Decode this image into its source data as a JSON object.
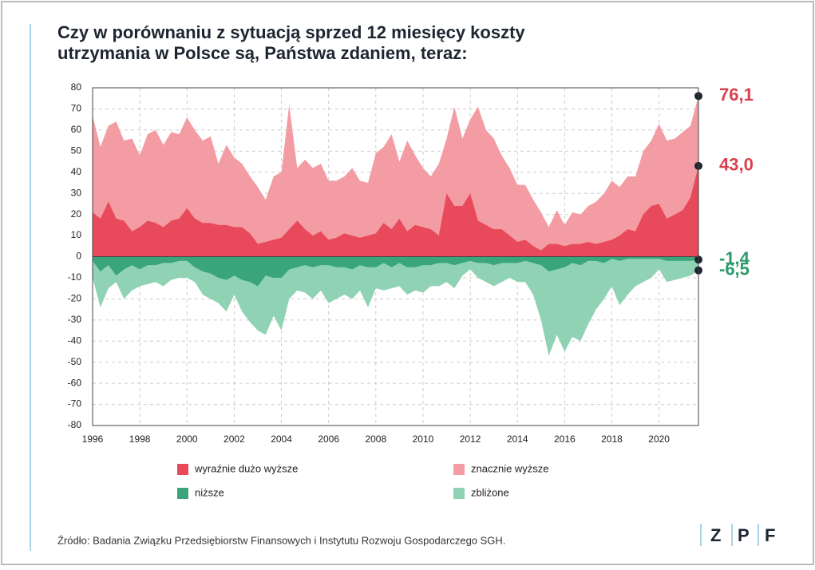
{
  "chart_data": {
    "type": "area",
    "title": [
      "Czy w porównaniu z sytuacją sprzed 12 miesięcy koszty",
      "utrzymania w Polsce są, Państwa zdaniem, teraz:"
    ],
    "source": "Źródło: Badania Związku Przedsiębiorstw Finansowych i Instytutu Rozwoju Gospodarczego SGH.",
    "logo": [
      "Z",
      "P",
      "F"
    ],
    "x": [
      1996,
      1996.33,
      1996.67,
      1997,
      1997.33,
      1997.67,
      1998,
      1998.33,
      1998.67,
      1999,
      1999.33,
      1999.67,
      2000,
      2000.33,
      2000.67,
      2001,
      2001.33,
      2001.67,
      2002,
      2002.33,
      2002.67,
      2003,
      2003.33,
      2003.67,
      2004,
      2004.33,
      2004.67,
      2005,
      2005.33,
      2005.67,
      2006,
      2006.33,
      2006.67,
      2007,
      2007.33,
      2007.67,
      2008,
      2008.33,
      2008.67,
      2009,
      2009.33,
      2009.67,
      2010,
      2010.33,
      2010.67,
      2011,
      2011.33,
      2011.67,
      2012,
      2012.33,
      2012.67,
      2013,
      2013.33,
      2013.67,
      2014,
      2014.33,
      2014.67,
      2015,
      2015.33,
      2015.67,
      2016,
      2016.33,
      2016.67,
      2017,
      2017.33,
      2017.67,
      2018,
      2018.33,
      2018.67,
      2019,
      2019.33,
      2019.67,
      2020,
      2020.33,
      2020.67,
      2021,
      2021.33,
      2021.67
    ],
    "series": [
      {
        "name": "znacznie wyższe",
        "color": "#f39ca3",
        "label_color": "#d9414f",
        "last_label": "76,1",
        "values": [
          67,
          52,
          62,
          64,
          55,
          56,
          48,
          58,
          60,
          53,
          59,
          58,
          66,
          60,
          55,
          57,
          44,
          53,
          47,
          44,
          38,
          33,
          27,
          38,
          40,
          72,
          42,
          46,
          42,
          44,
          36,
          36,
          38,
          42,
          36,
          35,
          49,
          52,
          58,
          45,
          55,
          48,
          42,
          38,
          44,
          56,
          71,
          56,
          65,
          71,
          60,
          56,
          48,
          42,
          34,
          34,
          27,
          21,
          14,
          22,
          15,
          21,
          20,
          24,
          26,
          30,
          36,
          33,
          38,
          38,
          50,
          55,
          63,
          55,
          56,
          59,
          62,
          76.1
        ]
      },
      {
        "name": "wyraźnie dużo wyższe",
        "color": "#e84a5b",
        "label_color": "#d9414f",
        "last_label": "43,0",
        "values": [
          21,
          18,
          26,
          18,
          17,
          12,
          14,
          17,
          16,
          14,
          17,
          18,
          23,
          18,
          16,
          16,
          15,
          15,
          14,
          14,
          11,
          6,
          7,
          8,
          9,
          13,
          17,
          13,
          10,
          12,
          8,
          9,
          11,
          10,
          9,
          10,
          11,
          16,
          13,
          18,
          12,
          15,
          14,
          13,
          10,
          30,
          24,
          24,
          30,
          17,
          15,
          13,
          13,
          10,
          7,
          8,
          5,
          3,
          6,
          6,
          5,
          6,
          6,
          7,
          6,
          7,
          8,
          10,
          13,
          12,
          20,
          24,
          25,
          18,
          20,
          22,
          28,
          43.0
        ]
      },
      {
        "name": "zbliżone",
        "color": "#8fd2b4",
        "label_color": "#2e9a6b",
        "last_label": "-6,5",
        "values": [
          -10,
          -24,
          -15,
          -12,
          -20,
          -16,
          -14,
          -13,
          -12,
          -14,
          -11,
          -10,
          -10,
          -12,
          -18,
          -20,
          -22,
          -26,
          -18,
          -26,
          -31,
          -35,
          -37,
          -28,
          -35,
          -20,
          -16,
          -17,
          -20,
          -16,
          -22,
          -20,
          -18,
          -20,
          -16,
          -24,
          -15,
          -16,
          -15,
          -14,
          -18,
          -16,
          -17,
          -14,
          -14,
          -12,
          -15,
          -9,
          -6,
          -10,
          -12,
          -14,
          -12,
          -10,
          -12,
          -12,
          -18,
          -30,
          -47,
          -37,
          -45,
          -38,
          -40,
          -32,
          -25,
          -20,
          -14,
          -23,
          -18,
          -14,
          -12,
          -10,
          -6,
          -12,
          -11,
          -10,
          -9,
          -6.5
        ]
      },
      {
        "name": "niższe",
        "color": "#3aa57a",
        "label_color": "#2e9a6b",
        "last_label": "-1,4",
        "values": [
          -2,
          -7,
          -4,
          -9,
          -6,
          -4,
          -6,
          -4,
          -4,
          -3,
          -3,
          -2,
          -2,
          -5,
          -7,
          -8,
          -10,
          -11,
          -9,
          -11,
          -12,
          -14,
          -9,
          -10,
          -10,
          -6,
          -5,
          -4,
          -5,
          -4,
          -4,
          -5,
          -5,
          -6,
          -4,
          -5,
          -5,
          -3,
          -5,
          -3,
          -5,
          -5,
          -4,
          -4,
          -3,
          -3,
          -4,
          -3,
          -2,
          -3,
          -3,
          -4,
          -3,
          -3,
          -3,
          -2,
          -3,
          -4,
          -7,
          -6,
          -5,
          -3,
          -4,
          -2,
          -2,
          -3,
          -1,
          -2,
          -1,
          -1,
          -1,
          -1,
          -1,
          -2,
          -2,
          -2,
          -2,
          -1.4
        ]
      }
    ],
    "legend_order": [
      1,
      0,
      3,
      2
    ],
    "xlim": [
      1996,
      2021.67
    ],
    "xticks": [
      1996,
      1998,
      2000,
      2002,
      2004,
      2006,
      2008,
      2010,
      2012,
      2014,
      2016,
      2018,
      2020
    ],
    "ylim": [
      -80,
      80
    ],
    "yticks": [
      80,
      70,
      60,
      50,
      40,
      30,
      20,
      10,
      0,
      -10,
      -20,
      -30,
      -40,
      -50,
      -60,
      -70,
      -80
    ],
    "grid": true
  }
}
